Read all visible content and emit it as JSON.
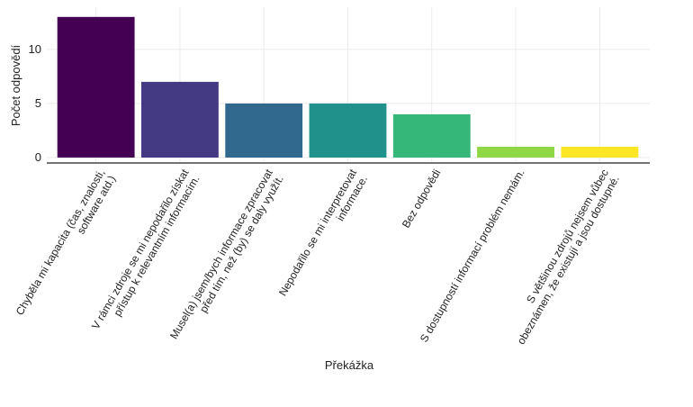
{
  "chart_data": {
    "type": "bar",
    "y_label": "Počet odpovědí",
    "x_label": "Překážka",
    "categories": [
      "Chyběla mi kapacita (čas, znalosti,\nsoftware atd.)",
      "V rámci zdroje se mi nepodařilo získat\npřístup k relevantním informacím.",
      "Musel(a) jsem/bych informace zpracovat\npřed tím, než (by) se daly využít.",
      "Nepodařilo se mi interpretovat\ninformace.",
      "Bez odpovědi",
      "S dostupností informací problém nemám.",
      "S většinou zdrojů nejsem vůbec\nobeznámen, že existují a jsou dostupné."
    ],
    "values": [
      13,
      7,
      5,
      5,
      4,
      1,
      1
    ],
    "colors": [
      "#440154",
      "#443983",
      "#31688e",
      "#21918c",
      "#35b779",
      "#8fd744",
      "#fde725"
    ],
    "ylim": [
      -0.5,
      13.9
    ],
    "yticks": [
      0,
      5,
      10
    ],
    "grid": true
  }
}
